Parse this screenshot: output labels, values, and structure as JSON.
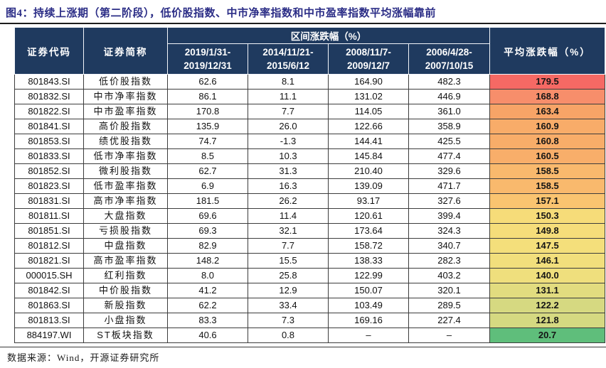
{
  "title": "图4：持续上涨期（第二阶段），低价股指数、中市净率指数和中市盈率指数平均涨幅靠前",
  "source": "数据来源：Wind，开源证券研究所",
  "colors": {
    "title_text": "#2B2D86",
    "header_bg": "#1F3A5F",
    "header_text": "#FFFFFF",
    "heatmap_max_red": "#F8696B",
    "heatmap_mid_yellow": "#F2DF7C",
    "heatmap_min_green": "#5FBE7B"
  },
  "table": {
    "headers": {
      "code": "证券代码",
      "name": "证券简称",
      "group": "区间涨跌幅（%）",
      "periods": [
        "2019/1/31-\n2019/12/31",
        "2014/11/21-\n2015/6/12",
        "2008/11/7-\n2009/12/7",
        "2006/4/28-\n2007/10/15"
      ],
      "avg": "平均涨跌幅（%）"
    },
    "rows": [
      {
        "code": "801843.SI",
        "name": "低价股指数",
        "values": [
          "62.6",
          "8.1",
          "164.90",
          "482.3"
        ],
        "avg": "179.5",
        "avg_color": "#F66964"
      },
      {
        "code": "801832.SI",
        "name": "中市净率指数",
        "values": [
          "86.1",
          "11.1",
          "131.02",
          "446.9"
        ],
        "avg": "168.8",
        "avg_color": "#F78E6B"
      },
      {
        "code": "801822.SI",
        "name": "中市盈率指数",
        "values": [
          "170.8",
          "7.7",
          "114.05",
          "361.0"
        ],
        "avg": "163.4",
        "avg_color": "#F7A467"
      },
      {
        "code": "801841.SI",
        "name": "高价股指数",
        "values": [
          "135.9",
          "26.0",
          "122.66",
          "358.9"
        ],
        "avg": "160.9",
        "avg_color": "#F8AC69"
      },
      {
        "code": "801853.SI",
        "name": "绩优股指数",
        "values": [
          "74.7",
          "-1.3",
          "144.41",
          "425.5"
        ],
        "avg": "160.8",
        "avg_color": "#F8AD69"
      },
      {
        "code": "801833.SI",
        "name": "低市净率指数",
        "values": [
          "8.5",
          "10.3",
          "145.84",
          "477.4"
        ],
        "avg": "160.5",
        "avg_color": "#F8AE6A"
      },
      {
        "code": "801852.SI",
        "name": "微利股指数",
        "values": [
          "62.7",
          "31.3",
          "210.40",
          "329.6"
        ],
        "avg": "158.5",
        "avg_color": "#F9B96D"
      },
      {
        "code": "801823.SI",
        "name": "低市盈率指数",
        "values": [
          "6.9",
          "16.3",
          "139.09",
          "471.7"
        ],
        "avg": "158.5",
        "avg_color": "#F9B96D"
      },
      {
        "code": "801831.SI",
        "name": "高市净率指数",
        "values": [
          "181.5",
          "26.2",
          "93.17",
          "327.6"
        ],
        "avg": "157.1",
        "avg_color": "#FAC470"
      },
      {
        "code": "801811.SI",
        "name": "大盘指数",
        "values": [
          "69.6",
          "11.4",
          "120.61",
          "399.4"
        ],
        "avg": "150.3",
        "avg_color": "#F6DC79"
      },
      {
        "code": "801851.SI",
        "name": "亏损股指数",
        "values": [
          "69.3",
          "32.1",
          "173.64",
          "324.3"
        ],
        "avg": "149.8",
        "avg_color": "#F5DD7A"
      },
      {
        "code": "801812.SI",
        "name": "中盘指数",
        "values": [
          "82.9",
          "7.7",
          "158.72",
          "340.7"
        ],
        "avg": "147.5",
        "avg_color": "#F4DF7B"
      },
      {
        "code": "801821.SI",
        "name": "高市盈率指数",
        "values": [
          "148.2",
          "15.5",
          "138.33",
          "282.3"
        ],
        "avg": "146.1",
        "avg_color": "#F2DF7C"
      },
      {
        "code": "000015.SH",
        "name": "红利指数",
        "values": [
          "8.0",
          "25.8",
          "122.99",
          "403.2"
        ],
        "avg": "140.0",
        "avg_color": "#EFDF7D"
      },
      {
        "code": "801842.SI",
        "name": "中价股指数",
        "values": [
          "41.2",
          "12.9",
          "150.07",
          "320.1"
        ],
        "avg": "131.1",
        "avg_color": "#E2DC7F"
      },
      {
        "code": "801863.SI",
        "name": "新股指数",
        "values": [
          "62.2",
          "33.4",
          "103.49",
          "289.5"
        ],
        "avg": "122.2",
        "avg_color": "#D6D981"
      },
      {
        "code": "801813.SI",
        "name": "小盘指数",
        "values": [
          "83.3",
          "7.3",
          "169.16",
          "227.4"
        ],
        "avg": "121.8",
        "avg_color": "#D5D981"
      },
      {
        "code": "884197.WI",
        "name": "ST板块指数",
        "values": [
          "40.6",
          "0.8",
          "–",
          "–"
        ],
        "avg": "20.7",
        "avg_color": "#5FBE7B"
      }
    ]
  }
}
